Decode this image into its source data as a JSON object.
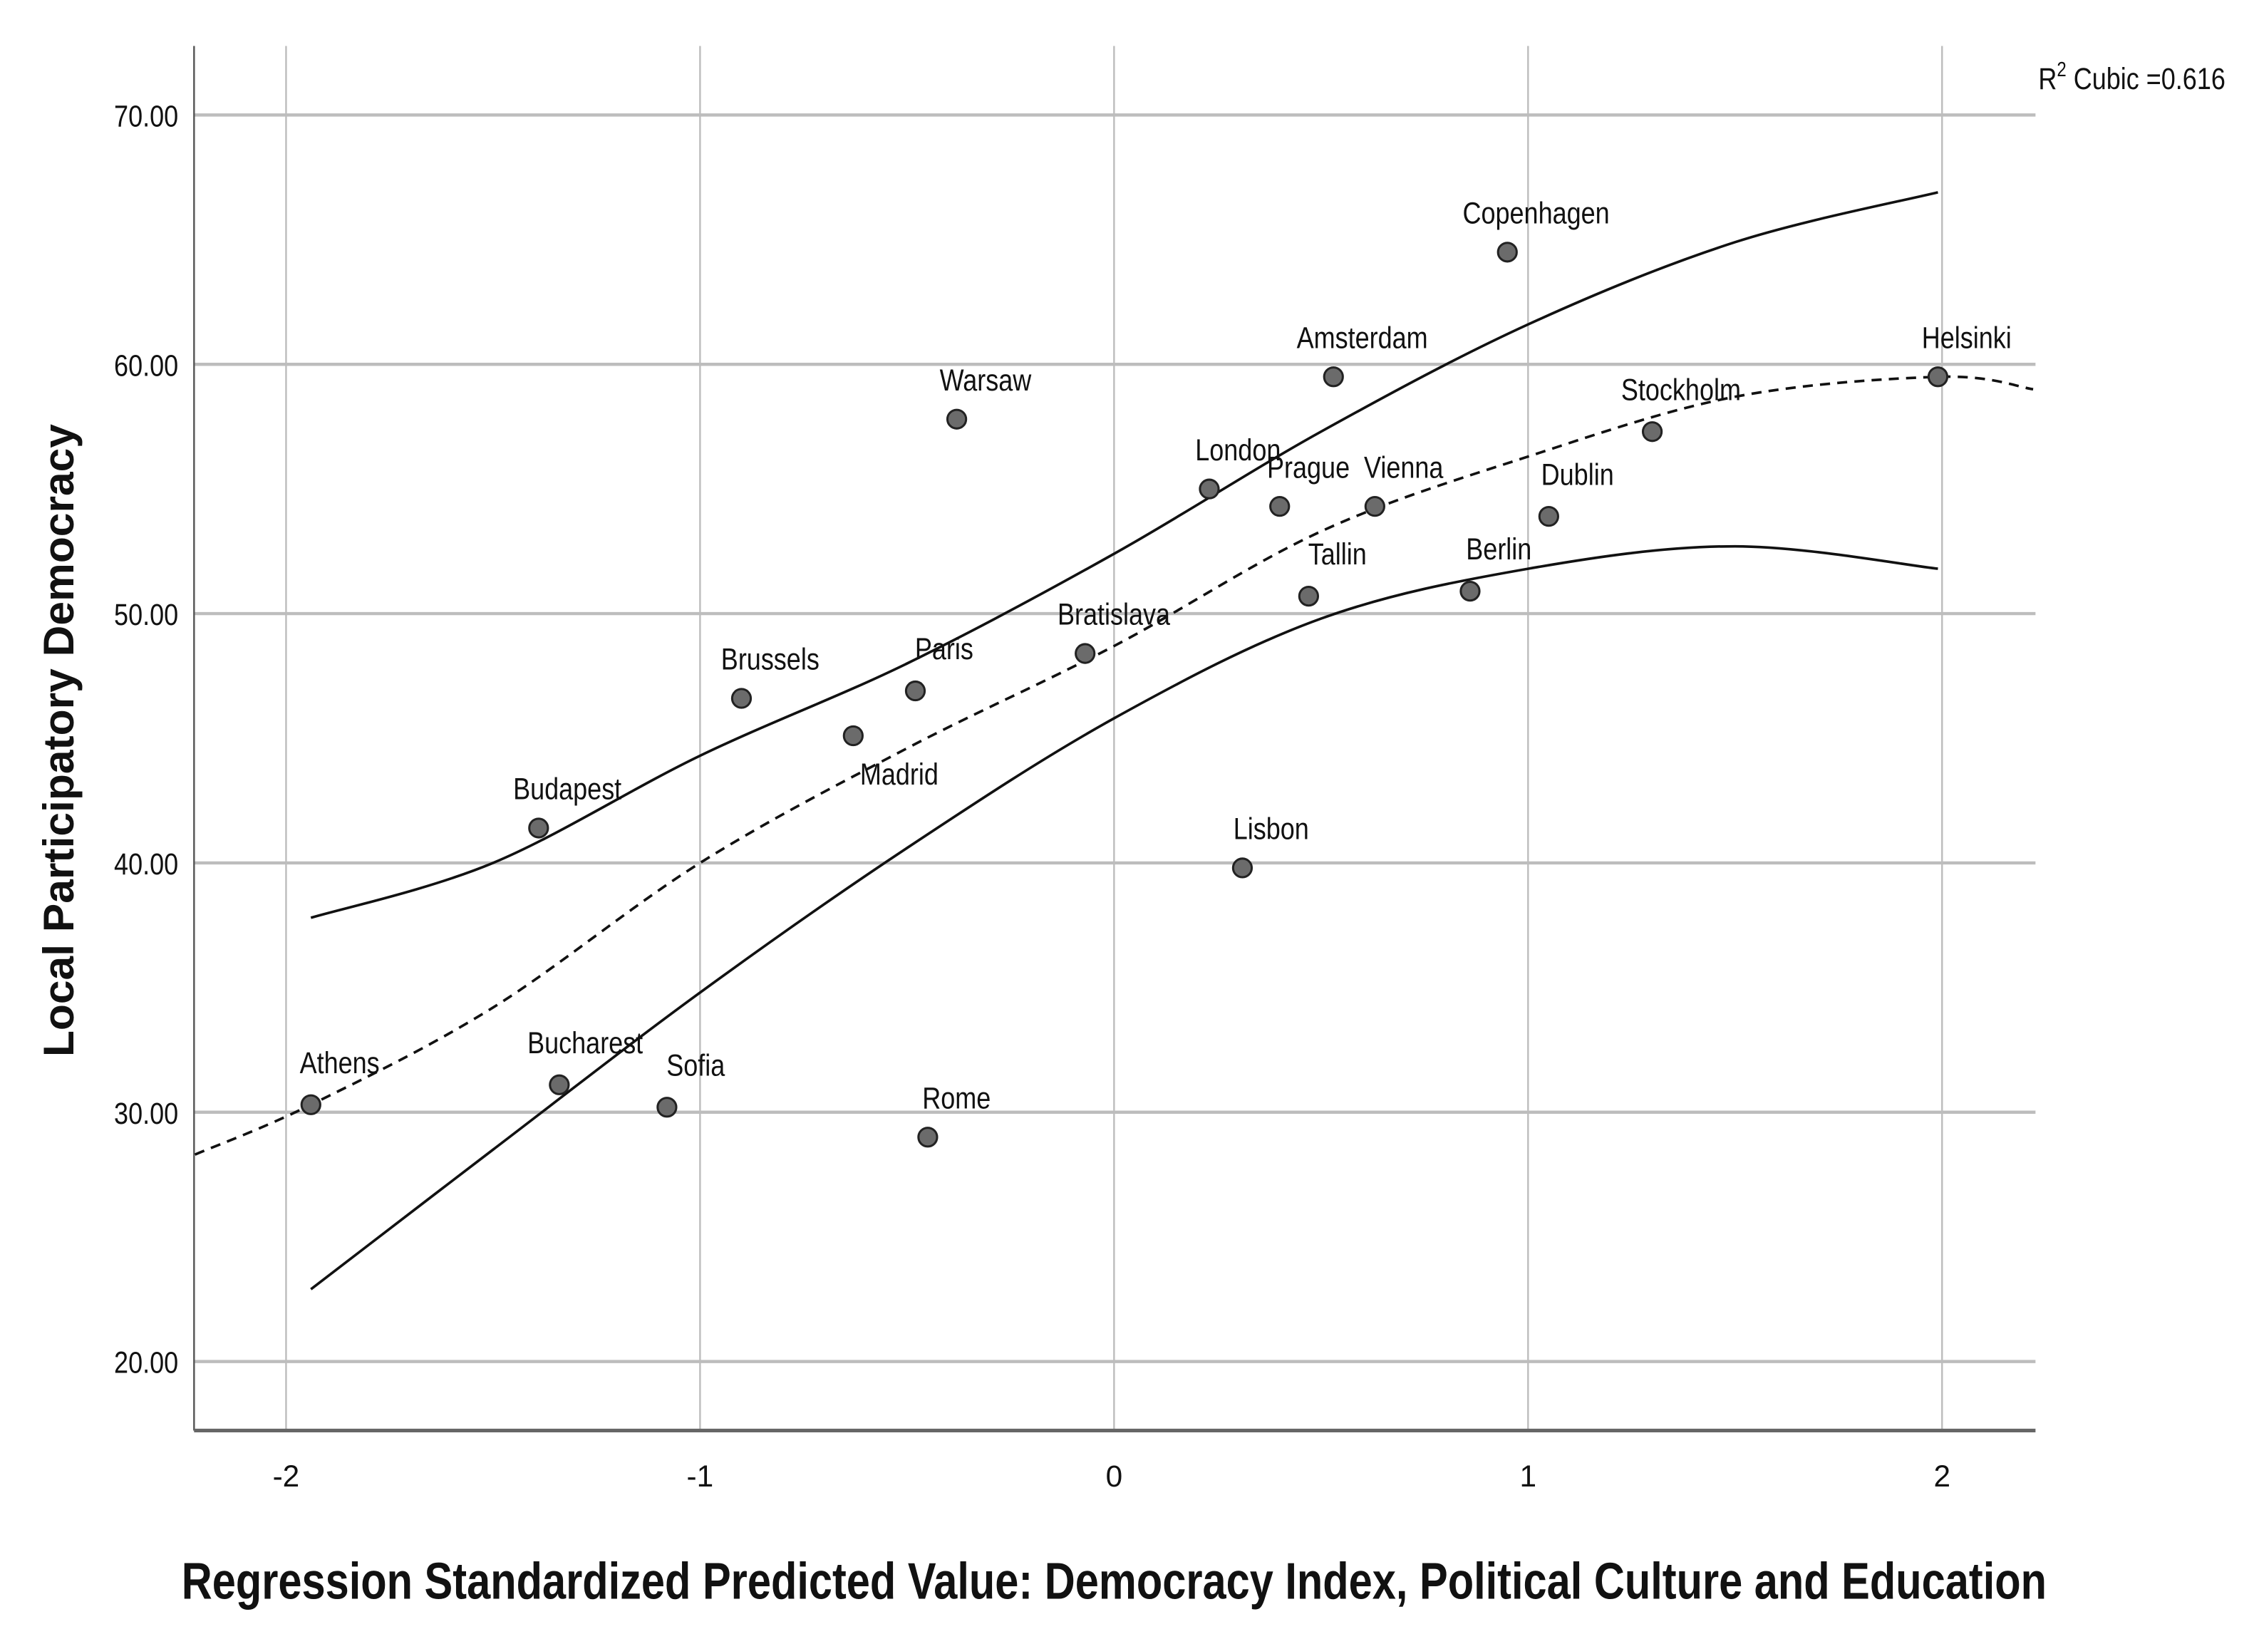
{
  "chart_data": {
    "type": "scatter",
    "title": "",
    "xlabel": "Regression Standardized Predicted Value: Democracy Index, Political Culture and Education",
    "ylabel": "Local Participatory Democracy",
    "xlim": [
      -2.22,
      2.22
    ],
    "ylim": [
      17.3,
      72.8
    ],
    "x_ticks": [
      -2,
      -1,
      0,
      1,
      2
    ],
    "x_tick_labels": [
      "-2",
      "-1",
      "0",
      "1",
      "2"
    ],
    "y_ticks": [
      20,
      30,
      40,
      50,
      60,
      70
    ],
    "y_tick_labels": [
      "20.00",
      "30.00",
      "40.00",
      "50.00",
      "60.00",
      "70.00"
    ],
    "grid": true,
    "annotation": {
      "r2_prefix": "R",
      "r2_sup": "2",
      "r2_text": " Cubic =0.616"
    },
    "points": [
      {
        "label": "Athens",
        "x": -1.94,
        "y": 30.3
      },
      {
        "label": "Bucharest",
        "x": -1.34,
        "y": 31.1
      },
      {
        "label": "Sofia",
        "x": -1.08,
        "y": 30.2
      },
      {
        "label": "Rome",
        "x": -0.45,
        "y": 29.0
      },
      {
        "label": "Budapest",
        "x": -1.39,
        "y": 41.4
      },
      {
        "label": "Brussels",
        "x": -0.9,
        "y": 46.6
      },
      {
        "label": "Madrid",
        "x": -0.63,
        "y": 45.1
      },
      {
        "label": "Paris",
        "x": -0.48,
        "y": 46.9
      },
      {
        "label": "Warsaw",
        "x": -0.38,
        "y": 57.8
      },
      {
        "label": "Bratislava",
        "x": -0.07,
        "y": 48.4
      },
      {
        "label": "London",
        "x": 0.23,
        "y": 55.0
      },
      {
        "label": "Lisbon",
        "x": 0.31,
        "y": 39.8
      },
      {
        "label": "Prague",
        "x": 0.4,
        "y": 54.3
      },
      {
        "label": "Tallin",
        "x": 0.47,
        "y": 50.7
      },
      {
        "label": "Amsterdam",
        "x": 0.53,
        "y": 59.5
      },
      {
        "label": "Vienna",
        "x": 0.63,
        "y": 54.3
      },
      {
        "label": "Berlin",
        "x": 0.86,
        "y": 50.9
      },
      {
        "label": "Copenhagen",
        "x": 0.95,
        "y": 64.5
      },
      {
        "label": "Dublin",
        "x": 1.05,
        "y": 53.9
      },
      {
        "label": "Stockholm",
        "x": 1.3,
        "y": 57.3
      },
      {
        "label": "Helsinki",
        "x": 1.99,
        "y": 59.5
      }
    ],
    "fit_line": {
      "style": "dashed",
      "x": [
        -2.22,
        -1.94,
        -1.5,
        -1,
        -0.5,
        0,
        0.5,
        1,
        1.5,
        2,
        2.22
      ],
      "y": [
        28.3,
        30.3,
        34.2,
        40.0,
        44.6,
        48.7,
        53.3,
        56.3,
        58.7,
        59.5,
        59.0
      ]
    },
    "ci_upper": {
      "style": "solid",
      "x": [
        -1.94,
        -1.5,
        -1,
        -0.5,
        0,
        0.5,
        1,
        1.5,
        1.99
      ],
      "y": [
        37.8,
        40.0,
        44.3,
        48.0,
        52.4,
        57.3,
        61.6,
        64.9,
        66.9
      ]
    },
    "ci_lower": {
      "style": "solid",
      "x": [
        -1.94,
        -1.5,
        -1,
        -0.5,
        0,
        0.5,
        1,
        1.5,
        1.99
      ],
      "y": [
        22.9,
        28.5,
        34.8,
        40.6,
        45.8,
        49.8,
        51.8,
        52.7,
        51.8
      ]
    },
    "colors": {
      "point_fill": "#6b6b6b",
      "point_stroke": "#222222",
      "grid": "#bdbdbd",
      "line": "#111111"
    }
  }
}
